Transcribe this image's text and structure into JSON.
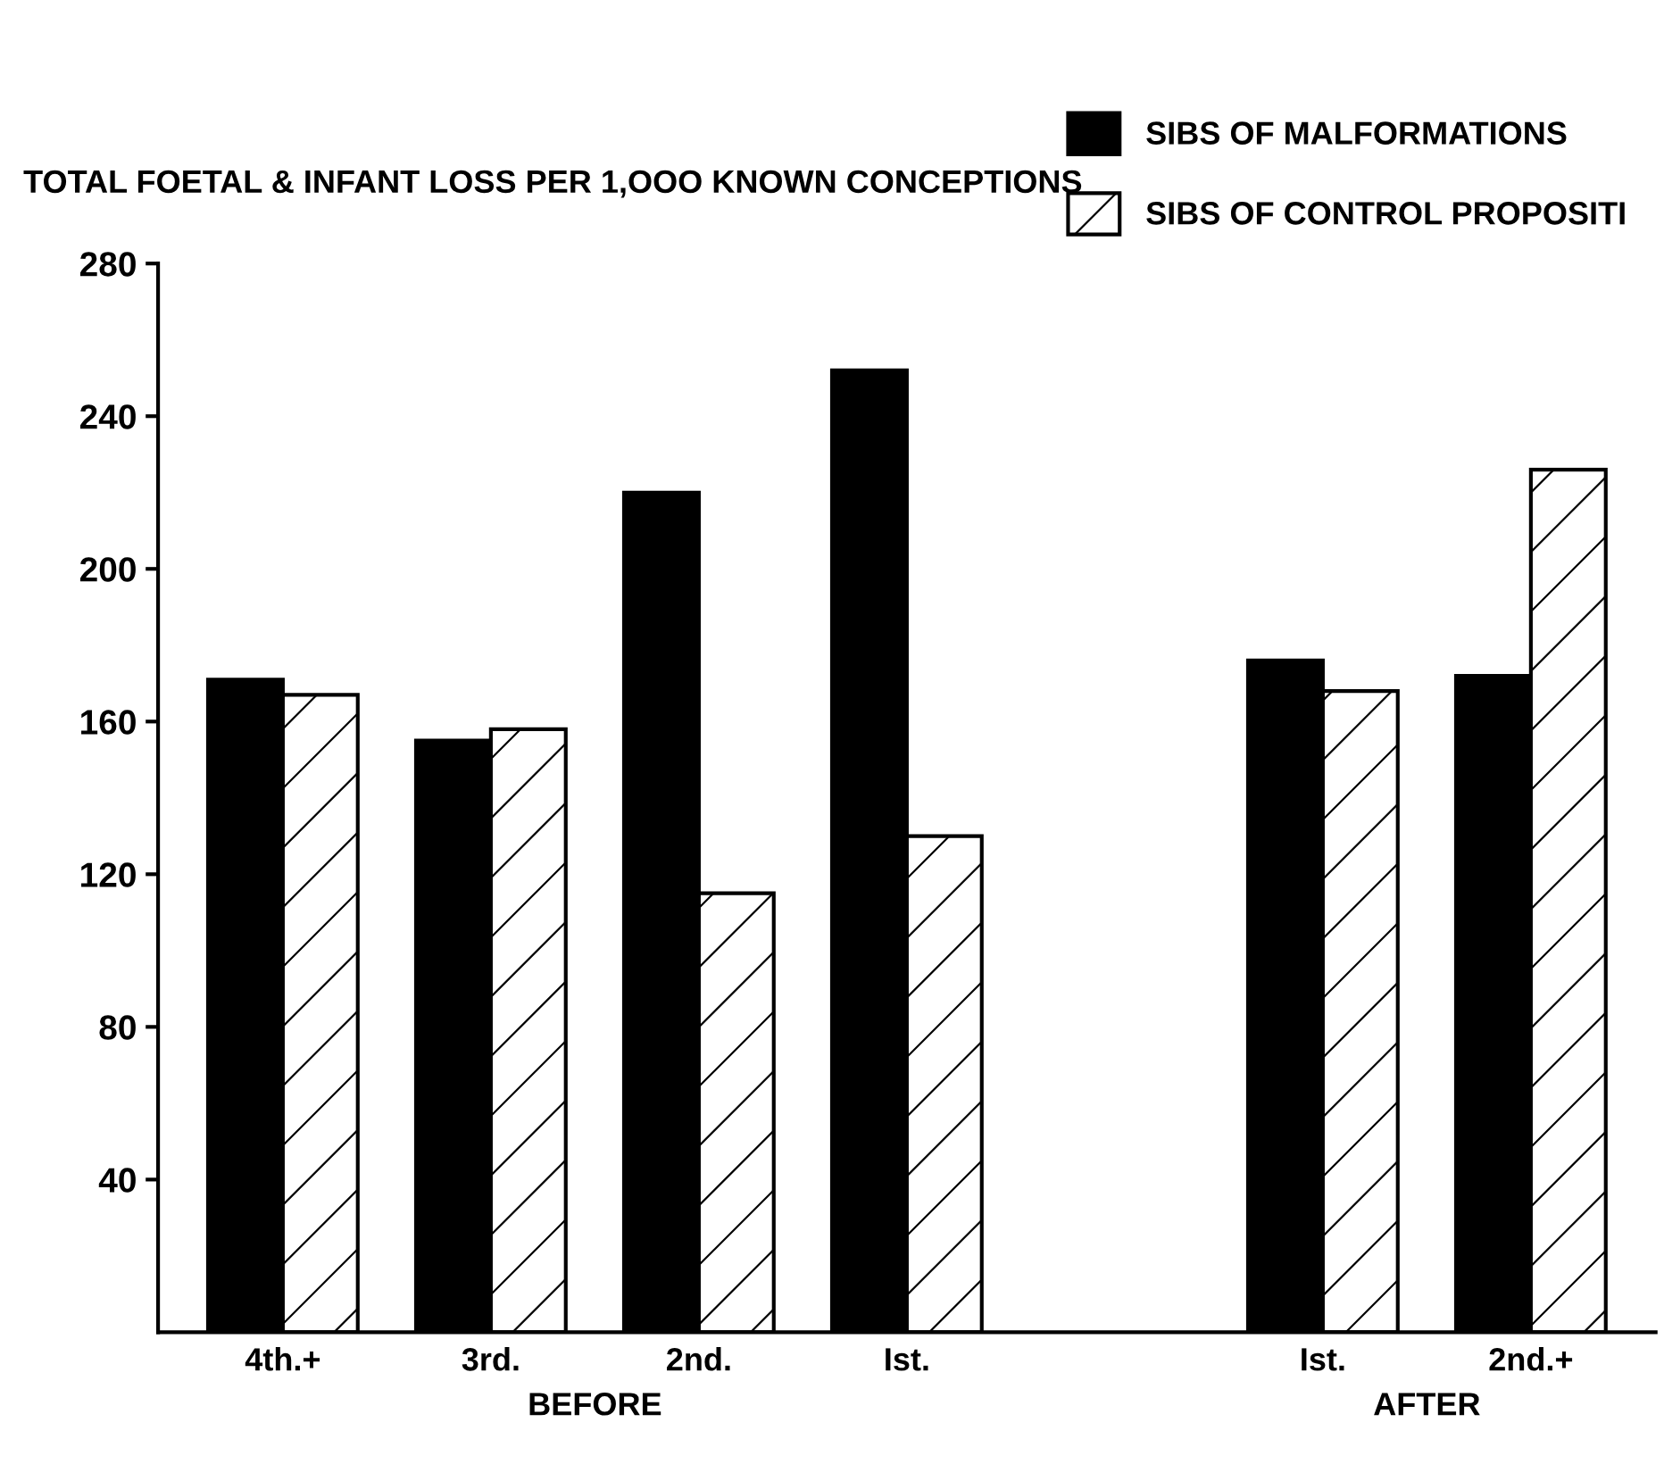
{
  "chart_data": {
    "type": "bar",
    "ylabel": "TOTAL FOETAL & INFANT LOSS PER 1,OOO KNOWN CONCEPTIONS",
    "categories": [
      "4th.+",
      "3rd.",
      "2nd.",
      "Ist.",
      null,
      "Ist.",
      "2nd.+"
    ],
    "series": [
      {
        "name": "SIBS OF MALFORMATIONS",
        "color": "#000000",
        "values": [
          171,
          155,
          220,
          252,
          null,
          176,
          172
        ]
      },
      {
        "name": "SIBS OF CONTROL PROPOSITI",
        "color": "#ffffff",
        "values": [
          167,
          158,
          115,
          130,
          null,
          168,
          226
        ]
      }
    ],
    "annotations": [
      "BEFORE",
      "AFTER"
    ],
    "ylim": [
      0,
      280
    ],
    "yticks": [
      40,
      80,
      120,
      160,
      200,
      240,
      280
    ],
    "grid": false,
    "legend": "top right"
  }
}
